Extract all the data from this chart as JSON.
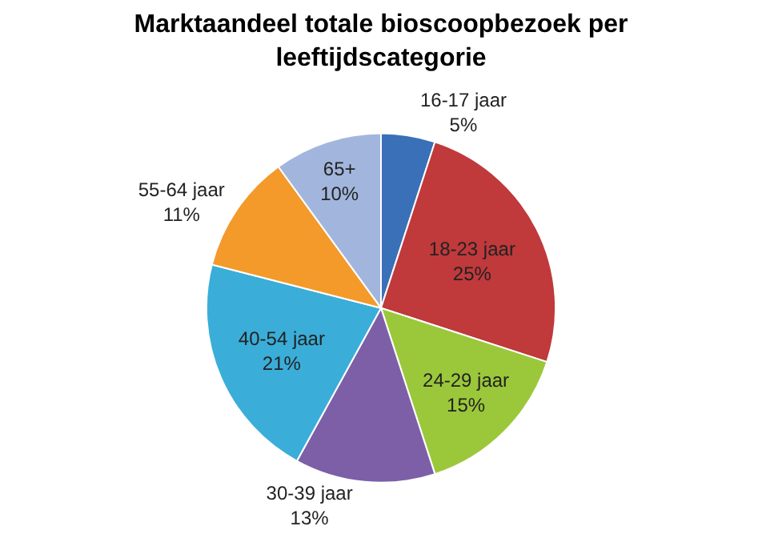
{
  "chart_data": {
    "type": "pie",
    "title": "Marktaandeel totale bioscoopbezoek per leeftijdscategorie",
    "categories": [
      "16-17 jaar",
      "18-23 jaar",
      "24-29 jaar",
      "30-39 jaar",
      "40-54 jaar",
      "55-64 jaar",
      "65+"
    ],
    "values": [
      5,
      25,
      15,
      13,
      21,
      11,
      10
    ],
    "value_labels": [
      "5%",
      "25%",
      "15%",
      "13%",
      "21%",
      "11%",
      "10%"
    ],
    "colors": [
      "#3a70b8",
      "#c0393b",
      "#9bc83a",
      "#7d5fa8",
      "#3aaed8",
      "#f39a2a",
      "#a2b6dd"
    ],
    "legend": false
  }
}
